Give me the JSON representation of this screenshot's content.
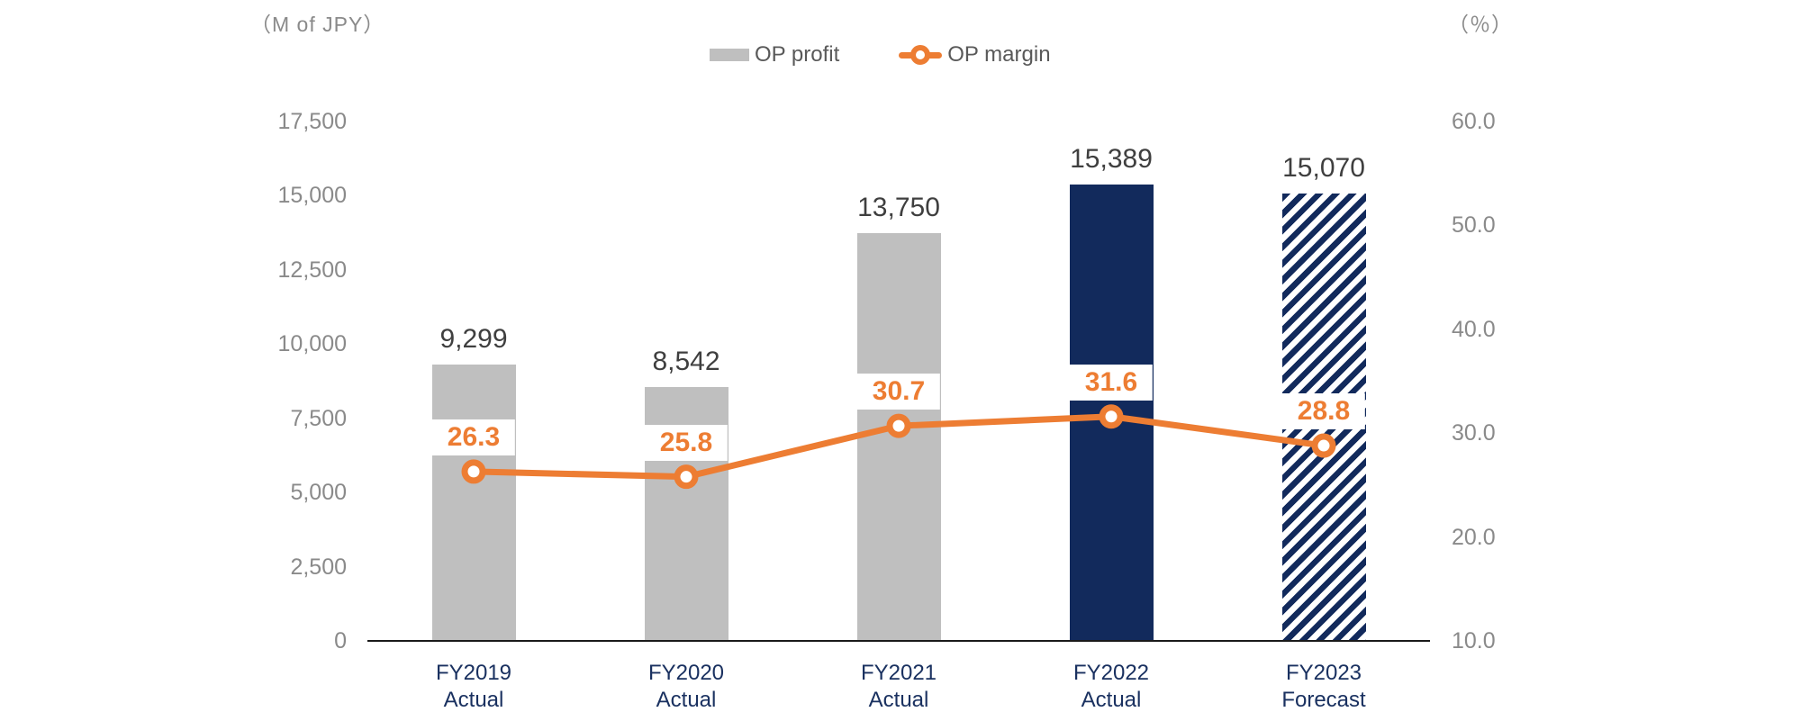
{
  "header": {
    "left_unit": "（M of JPY）",
    "right_unit": "（％）"
  },
  "legend": {
    "profit_label": "OP profit",
    "margin_label": "OP margin"
  },
  "chart_data": {
    "type": "combo bar+line",
    "categories": [
      [
        "FY2019",
        "Actual"
      ],
      [
        "FY2020",
        "Actual"
      ],
      [
        "FY2021",
        "Actual"
      ],
      [
        "FY2022",
        "Actual"
      ],
      [
        "FY2023",
        "Forecast"
      ]
    ],
    "series": [
      {
        "name": "OP profit",
        "type": "bar",
        "axis": "left",
        "values": [
          9299,
          8542,
          13750,
          15389,
          15070
        ],
        "value_labels": [
          "9,299",
          "8,542",
          "13,750",
          "15,389",
          "15,070"
        ],
        "bar_styles": [
          "gray",
          "gray",
          "gray",
          "navy",
          "hatched"
        ]
      },
      {
        "name": "OP margin",
        "type": "line",
        "axis": "right",
        "values": [
          26.3,
          25.8,
          30.7,
          31.6,
          28.8
        ],
        "value_labels": [
          "26.3",
          "25.8",
          "30.7",
          "31.6",
          "28.8"
        ]
      }
    ],
    "left_axis": {
      "title": "（M of JPY）",
      "tick_labels": [
        "0",
        "2,500",
        "5,000",
        "7,500",
        "10,000",
        "12,500",
        "15,000",
        "17,500"
      ],
      "tick_values": [
        0,
        2500,
        5000,
        7500,
        10000,
        12500,
        15000,
        17500
      ],
      "range": [
        0,
        17500
      ]
    },
    "right_axis": {
      "title": "（％）",
      "tick_labels": [
        "10.0",
        "20.0",
        "30.0",
        "40.0",
        "50.0",
        "60.0"
      ],
      "tick_values": [
        10,
        20,
        30,
        40,
        50,
        60
      ],
      "range": [
        10,
        60
      ]
    },
    "grid": false,
    "legend_position": "top-center",
    "colors": {
      "bar_gray": "#bfbfbf",
      "bar_navy": "#122a5c",
      "line_orange": "#ed7d33",
      "value_label": "#3f3f3f",
      "axis_tick": "#8a8a8a",
      "x_label_navy": "#1a3160",
      "legend_text": "#595959",
      "axis_line": "#1a1a1a"
    }
  }
}
